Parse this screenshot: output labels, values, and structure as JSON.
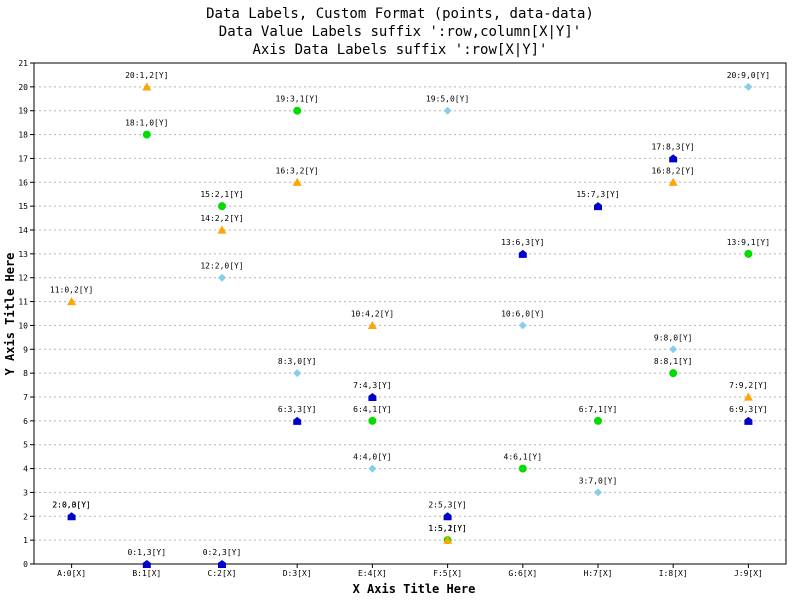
{
  "chart_data": {
    "type": "scatter",
    "title_lines": [
      "Data Labels, Custom Format (points, data-data)",
      "Data Value Labels suffix ':row,column[X|Y]'",
      "Axis Data Labels suffix ':row[X|Y]'"
    ],
    "xlabel": "X Axis Title Here",
    "ylabel": "Y Axis Title Here",
    "categories": [
      "A:0[X]",
      "B:1[X]",
      "C:2[X]",
      "D:3[X]",
      "E:4[X]",
      "F:5[X]",
      "G:6[X]",
      "H:7[X]",
      "I:8[X]",
      "J:9[X]"
    ],
    "yticks": [
      "0",
      "1",
      "2",
      "3",
      "4",
      "5",
      "6",
      "7",
      "8",
      "9",
      "10",
      "11",
      "12",
      "13",
      "14",
      "15",
      "16",
      "17",
      "18",
      "19",
      "20",
      "21"
    ],
    "xlim": [
      0,
      10
    ],
    "ylim": [
      0,
      21
    ],
    "grid": "horizontal dashed",
    "series": [
      {
        "marker": "diamond",
        "color": "#87ceeb",
        "points": [
          {
            "x": 0,
            "y": 2,
            "label": "2:0,0[Y]"
          },
          {
            "x": 2,
            "y": 12,
            "label": "12:2,0[Y]"
          },
          {
            "x": 3,
            "y": 8,
            "label": "8:3,0[Y]"
          },
          {
            "x": 4,
            "y": 4,
            "label": "4:4,0[Y]"
          },
          {
            "x": 5,
            "y": 19,
            "label": "19:5,0[Y]"
          },
          {
            "x": 6,
            "y": 10,
            "label": "10:6,0[Y]"
          },
          {
            "x": 7,
            "y": 3,
            "label": "3:7,0[Y]"
          },
          {
            "x": 8,
            "y": 9,
            "label": "9:8,0[Y]"
          },
          {
            "x": 9,
            "y": 20,
            "label": "20:9,0[Y]"
          }
        ]
      },
      {
        "marker": "circle",
        "color": "#00dd00",
        "points": [
          {
            "x": 1,
            "y": 18,
            "label": "18:1,0[Y]"
          },
          {
            "x": 2,
            "y": 15,
            "label": "15:2,1[Y]"
          },
          {
            "x": 3,
            "y": 19,
            "label": "19:3,1[Y]"
          },
          {
            "x": 4,
            "y": 6,
            "label": "6:4,1[Y]"
          },
          {
            "x": 5,
            "y": 1,
            "label": "1:5,1[Y]"
          },
          {
            "x": 6,
            "y": 4,
            "label": "4:6,1[Y]"
          },
          {
            "x": 7,
            "y": 6,
            "label": "6:7,1[Y]"
          },
          {
            "x": 8,
            "y": 8,
            "label": "8:8,1[Y]"
          },
          {
            "x": 9,
            "y": 13,
            "label": "13:9,1[Y]"
          }
        ]
      },
      {
        "marker": "triangle",
        "color": "#ffa500",
        "points": [
          {
            "x": 0,
            "y": 11,
            "label": "11:0,2[Y]"
          },
          {
            "x": 1,
            "y": 20,
            "label": "20:1,2[Y]"
          },
          {
            "x": 2,
            "y": 14,
            "label": "14:2,2[Y]"
          },
          {
            "x": 3,
            "y": 16,
            "label": "16:3,2[Y]"
          },
          {
            "x": 4,
            "y": 10,
            "label": "10:4,2[Y]"
          },
          {
            "x": 5,
            "y": 1,
            "label": "1:5,2[Y]"
          },
          {
            "x": 8,
            "y": 16,
            "label": "16:8,2[Y]"
          },
          {
            "x": 9,
            "y": 7,
            "label": "7:9,2[Y]"
          }
        ]
      },
      {
        "marker": "pentagon",
        "color": "#0000cc",
        "points": [
          {
            "x": 0,
            "y": 2,
            "label": "2:0,3[Y]"
          },
          {
            "x": 1,
            "y": 0,
            "label": "0:1,3[Y]"
          },
          {
            "x": 2,
            "y": 0,
            "label": "0:2,3[Y]"
          },
          {
            "x": 3,
            "y": 6,
            "label": "6:3,3[Y]"
          },
          {
            "x": 4,
            "y": 7,
            "label": "7:4,3[Y]"
          },
          {
            "x": 5,
            "y": 2,
            "label": "2:5,3[Y]"
          },
          {
            "x": 6,
            "y": 13,
            "label": "13:6,3[Y]"
          },
          {
            "x": 7,
            "y": 15,
            "label": "15:7,3[Y]"
          },
          {
            "x": 8,
            "y": 17,
            "label": "17:8,3[Y]"
          },
          {
            "x": 9,
            "y": 6,
            "label": "6:9,3[Y]"
          }
        ]
      }
    ]
  }
}
